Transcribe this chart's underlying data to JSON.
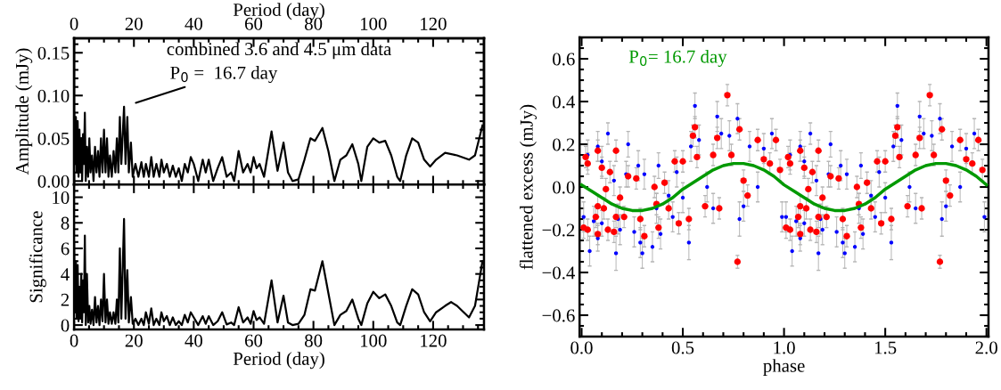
{
  "chart_data": [
    {
      "type": "line",
      "ylabel": "Amplitude (mJy)",
      "x2label": "Period (day)",
      "tick_labels": "y",
      "xlim": [
        0,
        137
      ],
      "xticks": [
        {
          "value": 0,
          "label": null
        },
        {
          "value": 20,
          "label": null
        },
        {
          "value": 40,
          "label": null
        },
        {
          "value": 60,
          "label": null
        },
        {
          "value": 80,
          "label": null
        },
        {
          "value": 100,
          "label": null
        },
        {
          "value": 120,
          "label": null
        }
      ],
      "x2lim": [
        0,
        137
      ],
      "x2ticks": [
        0,
        20,
        40,
        60,
        80,
        100,
        120
      ],
      "ylim": [
        -0.004,
        0.167
      ],
      "yticks": [
        {
          "value": 0,
          "label": "0.00"
        },
        {
          "value": 0.05,
          "label": "0.05"
        },
        {
          "value": 0.1,
          "label": "0.10"
        },
        {
          "value": 0.15,
          "label": "0.15"
        }
      ],
      "annotations": [
        "combined 3.6 and 4.5 μm data",
        {
          "text": "P$_{0}$ =  16.7 day",
          "x": 16.7,
          "y": 0.087
        }
      ],
      "series": [
        {
          "color": "#000000",
          "x": [
            0,
            0.3,
            0.6,
            0.9,
            1.2,
            1.5,
            1.8,
            2.1,
            2.4,
            2.7,
            3.0,
            3.3,
            3.6,
            3.9,
            4.3,
            4.7,
            5.1,
            5.5,
            6.0,
            6.5,
            7.0,
            7.5,
            8.0,
            8.5,
            9.0,
            9.5,
            10.0,
            10.5,
            11.0,
            11.5,
            12.0,
            12.6,
            13.2,
            13.8,
            14.3,
            14.8,
            15.3,
            15.8,
            16.7,
            17.2,
            17.8,
            18.3,
            19.0,
            19.6,
            20.5,
            21.5,
            22.5,
            23.3,
            24.0,
            25.0,
            25.8,
            26.6,
            27.5,
            28.5,
            29.2,
            30,
            31,
            32,
            33,
            34,
            35,
            36,
            37,
            38,
            39,
            40,
            41.5,
            43,
            44,
            45,
            46.5,
            48,
            49.5,
            51,
            52.5,
            53.5,
            55,
            56.5,
            58,
            59,
            60,
            61,
            62,
            63.5,
            66,
            68,
            70,
            71.5,
            73,
            75,
            77,
            79,
            80.5,
            83,
            85,
            87,
            89,
            91,
            93,
            95,
            96,
            98,
            100,
            102,
            104,
            106,
            108,
            109,
            111,
            113,
            115,
            117,
            119,
            121,
            124,
            128,
            132,
            134,
            136.5
          ],
          "values": [
            0.08,
            0.02,
            0.075,
            0.01,
            0.07,
            0.005,
            0.06,
            0.01,
            0.05,
            0.0,
            0.055,
            0.02,
            0.08,
            0.0,
            0.04,
            0.005,
            0.05,
            0.01,
            0.03,
            0.0,
            0.04,
            0.01,
            0.035,
            0.005,
            0.05,
            0.01,
            0.06,
            0.01,
            0.05,
            0.005,
            0.03,
            0.005,
            0.035,
            0.01,
            0.05,
            0.01,
            0.075,
            0.02,
            0.087,
            0.02,
            0.075,
            0.01,
            0.045,
            0.005,
            0.02,
            0.005,
            0.022,
            0.005,
            0.02,
            0.005,
            0.028,
            0.005,
            0.02,
            0.005,
            0.025,
            0.01,
            0.02,
            0.005,
            0.018,
            0.005,
            0.015,
            0.0,
            0.02,
            0.01,
            0.028,
            0.02,
            0.0,
            0.025,
            0.01,
            0.025,
            0.0,
            0.015,
            0.028,
            0.005,
            0.01,
            0.0,
            0.035,
            0.01,
            0.02,
            0.01,
            0.028,
            0.015,
            0.02,
            0.005,
            0.058,
            0.012,
            0.045,
            0.01,
            0.0,
            0.002,
            0.025,
            0.05,
            0.047,
            0.062,
            0.035,
            0.0,
            0.025,
            0.03,
            0.043,
            0.02,
            0.0,
            0.04,
            0.05,
            0.045,
            0.047,
            0.03,
            0.005,
            0.0,
            0.03,
            0.05,
            0.045,
            0.025,
            0.017,
            0.025,
            0.033,
            0.03,
            0.025,
            0.03,
            0.065
          ]
        }
      ]
    },
    {
      "type": "line",
      "ylabel": "Significance",
      "xlabel": "Period (day)",
      "xlim": [
        0,
        137
      ],
      "xticks": [
        0,
        20,
        40,
        60,
        80,
        100,
        120
      ],
      "ylim": [
        -0.35,
        11
      ],
      "yticks": [
        0,
        2,
        4,
        6,
        8,
        10
      ],
      "series": [
        {
          "color": "#000000",
          "x": [
            0,
            0.3,
            0.6,
            0.9,
            1.2,
            1.5,
            1.8,
            2.1,
            2.4,
            2.7,
            3.0,
            3.3,
            3.6,
            3.9,
            4.3,
            4.7,
            5.1,
            5.5,
            6.0,
            6.5,
            7.0,
            7.5,
            8.0,
            8.5,
            9.0,
            9.5,
            10.0,
            10.5,
            11.0,
            11.5,
            12.0,
            12.6,
            13.2,
            13.8,
            14.3,
            14.8,
            15.3,
            15.8,
            16.7,
            17.2,
            17.8,
            18.3,
            19.0,
            19.6,
            20.5,
            21.5,
            22.5,
            23.3,
            24.0,
            25.0,
            25.8,
            26.6,
            27.5,
            28.5,
            29.2,
            30,
            31,
            32,
            33,
            34,
            35,
            36,
            37,
            38,
            39,
            40,
            41.5,
            43,
            44,
            45,
            46.5,
            48,
            49.5,
            51,
            52.5,
            53.5,
            55,
            56.5,
            58,
            59,
            60,
            61,
            62,
            63.5,
            66,
            68,
            70,
            71.5,
            73,
            75,
            77,
            79,
            80.5,
            83,
            85,
            87,
            89,
            91,
            93,
            95,
            96,
            98,
            100,
            102,
            104,
            106,
            108,
            109,
            111,
            113,
            115,
            117,
            119,
            121,
            124,
            126,
            128,
            132,
            134,
            136.5
          ],
          "values": [
            6.5,
            1,
            5,
            0.5,
            4.7,
            0.3,
            3,
            0.5,
            4,
            0.2,
            3.5,
            1,
            7,
            0,
            4,
            0.2,
            1.5,
            0.1,
            1.2,
            0,
            2.2,
            0.2,
            1.5,
            0,
            2,
            0.3,
            4,
            0.2,
            2,
            0.1,
            1,
            0.1,
            1,
            0.1,
            2,
            0.2,
            6,
            0.5,
            8.3,
            0.5,
            4.3,
            0.2,
            2.2,
            0.1,
            0.5,
            0,
            0.5,
            0,
            1,
            0.1,
            1.3,
            0,
            0.5,
            0,
            1.0,
            0.3,
            0.7,
            0,
            0.6,
            0,
            0.3,
            0,
            0.8,
            0.2,
            1.0,
            0.6,
            0,
            0.7,
            0.1,
            0.7,
            0,
            0.3,
            1.0,
            0.05,
            0.2,
            0,
            1.4,
            0.2,
            0.6,
            0.1,
            1.1,
            0.4,
            0.6,
            0.1,
            3.5,
            0.2,
            2.3,
            0.2,
            0,
            0.1,
            0.8,
            2.8,
            2.7,
            5.0,
            2.5,
            0,
            0.8,
            1.1,
            2.0,
            0.5,
            0,
            1.7,
            2.6,
            2.1,
            2.4,
            1.5,
            0.2,
            0,
            1.5,
            2.8,
            2.4,
            1.0,
            0.3,
            1.0,
            1.5,
            1.8,
            1.5,
            0.6,
            1.5,
            5.0
          ]
        }
      ]
    },
    {
      "type": "scatter",
      "marker": "circle",
      "xlabel": "phase",
      "ylabel": "flattened excess (mJy)",
      "xlim": [
        -0.01,
        2.01
      ],
      "xticks": [
        {
          "value": 0,
          "label": "0.0"
        },
        {
          "value": 0.5,
          "label": "0.5"
        },
        {
          "value": 1,
          "label": "1.0"
        },
        {
          "value": 1.5,
          "label": "1.5"
        },
        {
          "value": 2,
          "label": "2.0"
        }
      ],
      "ylim": [
        -0.7,
        0.7
      ],
      "yticks": [
        -0.6,
        -0.4,
        -0.2,
        {
          "value": 0,
          "label": "0.0"
        },
        0.2,
        0.4,
        0.6
      ],
      "annotations": [
        "P$_{0}$= 16.7 day"
      ],
      "series": [
        {
          "color": "#0000ff",
          "x": [
            0.01,
            0.03,
            0.04,
            0.06,
            0.08,
            0.08,
            0.1,
            0.1,
            0.13,
            0.16,
            0.17,
            0.18,
            0.19,
            0.22,
            0.23,
            0.26,
            0.28,
            0.29,
            0.3,
            0.31,
            0.35,
            0.37,
            0.38,
            0.39,
            0.43,
            0.45,
            0.47,
            0.5,
            0.53,
            0.54,
            0.56,
            0.58,
            0.62,
            0.65,
            0.67,
            0.69,
            0.73,
            0.77,
            0.78,
            0.8,
            0.83,
            0.87,
            0.9,
            0.94,
            0.99,
            1.01,
            1.03,
            1.04,
            1.06,
            1.08,
            1.08,
            1.1,
            1.1,
            1.13,
            1.16,
            1.17,
            1.18,
            1.19,
            1.22,
            1.23,
            1.26,
            1.28,
            1.29,
            1.3,
            1.31,
            1.35,
            1.37,
            1.38,
            1.39,
            1.43,
            1.45,
            1.47,
            1.5,
            1.53,
            1.54,
            1.56,
            1.58,
            1.62,
            1.65,
            1.67,
            1.69,
            1.73,
            1.77,
            1.78,
            1.8,
            1.83,
            1.87,
            1.9,
            1.94,
            1.99
          ],
          "values": [
            -0.14,
            0.15,
            -0.3,
            -0.16,
            -0.24,
            0.19,
            0.12,
            -0.17,
            0.25,
            0.03,
            -0.31,
            -0.15,
            -0.2,
            0.06,
            0.2,
            -0.21,
            0.1,
            -0.26,
            -0.31,
            0.06,
            -0.28,
            -0.1,
            0.1,
            -0.22,
            -0.04,
            -0.14,
            0.07,
            -0.05,
            -0.26,
            0.19,
            0.38,
            0.22,
            0.0,
            -0.1,
            0.33,
            0.25,
            0.24,
            0.32,
            -0.15,
            -0.09,
            0.19,
            0.0,
            0.18,
            0.25,
            -0.14,
            -0.14,
            0.15,
            -0.3,
            -0.16,
            -0.24,
            0.19,
            0.12,
            -0.17,
            0.25,
            0.03,
            -0.31,
            -0.15,
            -0.2,
            0.06,
            0.2,
            -0.21,
            0.1,
            -0.26,
            -0.31,
            0.06,
            -0.28,
            -0.1,
            0.1,
            -0.22,
            -0.04,
            -0.14,
            0.07,
            -0.05,
            -0.26,
            0.19,
            0.38,
            0.22,
            0.0,
            -0.1,
            0.33,
            0.25,
            0.24,
            0.32,
            -0.15,
            -0.09,
            0.19,
            0.0,
            0.18,
            0.25,
            -0.14
          ],
          "errors": [
            0.07,
            0.07,
            0.07,
            0.07,
            0.06,
            0.07,
            0.07,
            0.06,
            0.05,
            0.07,
            0.08,
            0.07,
            0.07,
            0.06,
            0.06,
            0.07,
            0.07,
            0.07,
            0.07,
            0.07,
            0.07,
            0.07,
            0.06,
            0.07,
            0.07,
            0.07,
            0.07,
            0.07,
            0.08,
            0.07,
            0.06,
            0.07,
            0.07,
            0.07,
            0.07,
            0.07,
            0.07,
            0.07,
            0.08,
            0.07,
            0.07,
            0.07,
            0.07,
            0.07,
            0.07,
            0.07,
            0.07,
            0.07,
            0.07,
            0.06,
            0.07,
            0.07,
            0.06,
            0.05,
            0.07,
            0.08,
            0.07,
            0.07,
            0.06,
            0.06,
            0.07,
            0.07,
            0.07,
            0.07,
            0.07,
            0.07,
            0.07,
            0.06,
            0.07,
            0.07,
            0.07,
            0.07,
            0.07,
            0.08,
            0.07,
            0.06,
            0.07,
            0.07,
            0.07,
            0.07,
            0.07,
            0.07,
            0.07,
            0.08,
            0.07,
            0.07,
            0.07,
            0.07,
            0.07,
            0.07
          ]
        },
        {
          "color": "#ff0000",
          "x": [
            0.01,
            0.02,
            0.03,
            0.03,
            0.07,
            0.08,
            0.08,
            0.08,
            0.1,
            0.11,
            0.12,
            0.13,
            0.14,
            0.16,
            0.17,
            0.17,
            0.19,
            0.21,
            0.23,
            0.27,
            0.29,
            0.31,
            0.36,
            0.37,
            0.38,
            0.41,
            0.43,
            0.46,
            0.48,
            0.5,
            0.53,
            0.55,
            0.56,
            0.57,
            0.61,
            0.65,
            0.67,
            0.68,
            0.72,
            0.74,
            0.77,
            0.78,
            0.8,
            0.82,
            0.87,
            0.9,
            0.93,
            0.96,
            0.98,
            1.01,
            1.02,
            1.03,
            1.03,
            1.07,
            1.08,
            1.08,
            1.08,
            1.1,
            1.11,
            1.12,
            1.13,
            1.14,
            1.16,
            1.17,
            1.17,
            1.19,
            1.21,
            1.23,
            1.27,
            1.29,
            1.31,
            1.36,
            1.37,
            1.38,
            1.41,
            1.43,
            1.46,
            1.48,
            1.5,
            1.53,
            1.55,
            1.56,
            1.57,
            1.61,
            1.65,
            1.67,
            1.68,
            1.72,
            1.74,
            1.77,
            1.78,
            1.8,
            1.82,
            1.87,
            1.9,
            1.93,
            1.96,
            1.98
          ],
          "values": [
            -0.19,
            0.14,
            -0.2,
            0.11,
            -0.14,
            0.17,
            -0.09,
            -0.22,
            0.09,
            -0.1,
            -0.01,
            -0.2,
            0.07,
            -0.21,
            -0.14,
            0.17,
            -0.05,
            -0.14,
            0.05,
            0.04,
            -0.15,
            -0.23,
            0.0,
            -0.08,
            -0.19,
            0.02,
            -0.1,
            0.12,
            -0.17,
            0.12,
            -0.15,
            0.24,
            0.28,
            0.14,
            -0.09,
            0.15,
            0.23,
            -0.1,
            0.43,
            0.15,
            -0.35,
            0.27,
            0.03,
            -0.04,
            0.22,
            0.13,
            0.11,
            0.22,
            0.08,
            -0.19,
            0.14,
            -0.2,
            0.11,
            -0.14,
            0.17,
            -0.09,
            -0.22,
            0.09,
            -0.1,
            -0.01,
            -0.2,
            0.07,
            -0.21,
            -0.14,
            0.17,
            -0.05,
            -0.14,
            0.05,
            0.04,
            -0.15,
            -0.23,
            0.0,
            -0.08,
            -0.19,
            0.02,
            -0.1,
            0.12,
            -0.17,
            0.12,
            -0.15,
            0.24,
            0.28,
            0.14,
            -0.09,
            0.15,
            0.23,
            -0.1,
            0.43,
            0.15,
            -0.35,
            0.27,
            0.03,
            -0.04,
            0.22,
            0.13,
            0.11,
            0.22,
            0.08
          ],
          "errors": [
            0.05,
            0.05,
            0.05,
            0.05,
            0.05,
            0.05,
            0.05,
            0.05,
            0.05,
            0.05,
            0.05,
            0.05,
            0.05,
            0.05,
            0.05,
            0.05,
            0.05,
            0.05,
            0.05,
            0.05,
            0.05,
            0.05,
            0.05,
            0.05,
            0.05,
            0.05,
            0.05,
            0.05,
            0.05,
            0.05,
            0.05,
            0.05,
            0.05,
            0.05,
            0.05,
            0.05,
            0.05,
            0.05,
            0.05,
            0.05,
            0.03,
            0.05,
            0.05,
            0.05,
            0.05,
            0.05,
            0.05,
            0.05,
            0.05,
            0.05,
            0.05,
            0.05,
            0.05,
            0.05,
            0.05,
            0.05,
            0.05,
            0.05,
            0.05,
            0.05,
            0.05,
            0.05,
            0.05,
            0.05,
            0.05,
            0.05,
            0.05,
            0.05,
            0.05,
            0.05,
            0.05,
            0.05,
            0.05,
            0.05,
            0.05,
            0.05,
            0.05,
            0.05,
            0.05,
            0.05,
            0.05,
            0.05,
            0.05,
            0.05,
            0.05,
            0.05,
            0.05,
            0.05,
            0.05,
            0.03,
            0.05,
            0.05,
            0.05,
            0.05,
            0.05,
            0.05,
            0.05,
            0.05
          ]
        },
        {
          "type": "line",
          "marker": "none",
          "color": "#009900",
          "x": [
            0,
            0.05,
            0.1,
            0.15,
            0.2,
            0.25,
            0.3,
            0.35,
            0.4,
            0.45,
            0.5,
            0.55,
            0.6,
            0.65,
            0.7,
            0.75,
            0.8,
            0.85,
            0.9,
            0.95,
            1.0,
            1.05,
            1.1,
            1.15,
            1.2,
            1.25,
            1.3,
            1.35,
            1.4,
            1.45,
            1.5,
            1.55,
            1.6,
            1.65,
            1.7,
            1.75,
            1.8,
            1.85,
            1.9,
            1.95,
            2.0
          ],
          "values": [
            0.01,
            -0.02,
            -0.05,
            -0.08,
            -0.1,
            -0.11,
            -0.11,
            -0.1,
            -0.08,
            -0.05,
            -0.01,
            0.02,
            0.05,
            0.08,
            0.1,
            0.11,
            0.11,
            0.1,
            0.08,
            0.05,
            0.01,
            -0.02,
            -0.05,
            -0.08,
            -0.1,
            -0.11,
            -0.11,
            -0.1,
            -0.08,
            -0.05,
            -0.01,
            0.02,
            0.05,
            0.08,
            0.1,
            0.11,
            0.11,
            0.1,
            0.08,
            0.05,
            0.01
          ]
        }
      ]
    }
  ]
}
